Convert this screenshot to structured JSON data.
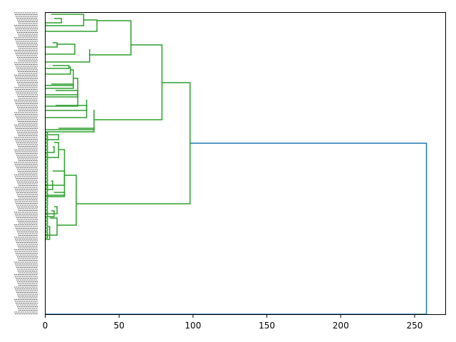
{
  "chart_data": {
    "type": "dendrogram",
    "orientation": "left",
    "title": "",
    "xlabel": "",
    "ylabel": "",
    "xlim": [
      0,
      271
    ],
    "xticks": [
      0,
      50,
      100,
      150,
      200,
      250
    ],
    "xtick_labels": [
      "0",
      "50",
      "100",
      "150",
      "200",
      "250"
    ],
    "grid": false,
    "legend": "none",
    "colors": {
      "cluster": "#2ca02c",
      "root": "#1f77b4",
      "axis": "#000000"
    },
    "leaf_count": 170,
    "root_merge": {
      "distance": 258,
      "left_height": 98
    },
    "merges": [
      {
        "level": "root",
        "distance": 258,
        "children": [
          "cluster-green",
          "leaf-bottom"
        ]
      },
      {
        "level": "l1",
        "distance": 98,
        "children": [
          "upper-block",
          "lower-block"
        ]
      },
      {
        "level": "l2",
        "distance": 79,
        "children": [
          "top-group",
          "middle-group"
        ]
      },
      {
        "level": "l3",
        "distance": 58,
        "children": [
          "group-a",
          "group-b"
        ]
      },
      {
        "level": "l4",
        "distance": 35,
        "children": [
          "a1",
          "a2"
        ]
      },
      {
        "level": "l4",
        "distance": 30,
        "children": [
          "b1",
          "b2"
        ]
      },
      {
        "level": "l3",
        "distance": 33,
        "children": [
          "m1",
          "m2"
        ]
      },
      {
        "level": "l2",
        "distance": 21,
        "children": [
          "low1",
          "low2"
        ]
      }
    ]
  }
}
